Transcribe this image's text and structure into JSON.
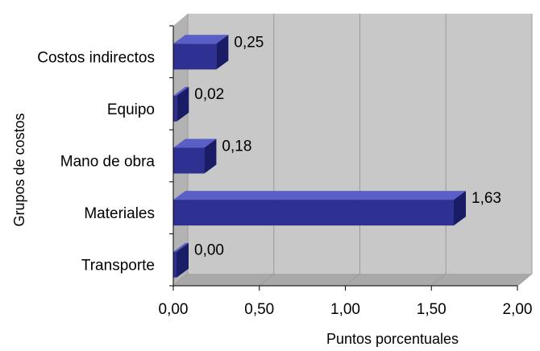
{
  "chart_data": {
    "type": "bar",
    "orientation": "horizontal",
    "style": "3d",
    "categories": [
      "Costos indirectos",
      "Equipo",
      "Mano de obra",
      "Materiales",
      "Transporte"
    ],
    "values": [
      0.25,
      0.02,
      0.18,
      1.63,
      0.0
    ],
    "data_labels": [
      "0,25",
      "0,02",
      "0,18",
      "1,63",
      "0,00"
    ],
    "xlabel": "Puntos porcentuales",
    "ylabel": "Grupos de costos",
    "xlim": [
      0,
      2
    ],
    "x_ticks": [
      0,
      0.5,
      1,
      1.5,
      2
    ],
    "x_tick_labels": [
      "0,00",
      "0,50",
      "1,00",
      "1,50",
      "2,00"
    ],
    "grid": true,
    "colors": {
      "bar_front": "#2e3192",
      "bar_top": "#5a5fc8",
      "bar_side": "#1a1c66",
      "wall": "#c8c8c8",
      "floor": "#a9a9a9",
      "gridline": "#9a9a9a"
    }
  }
}
